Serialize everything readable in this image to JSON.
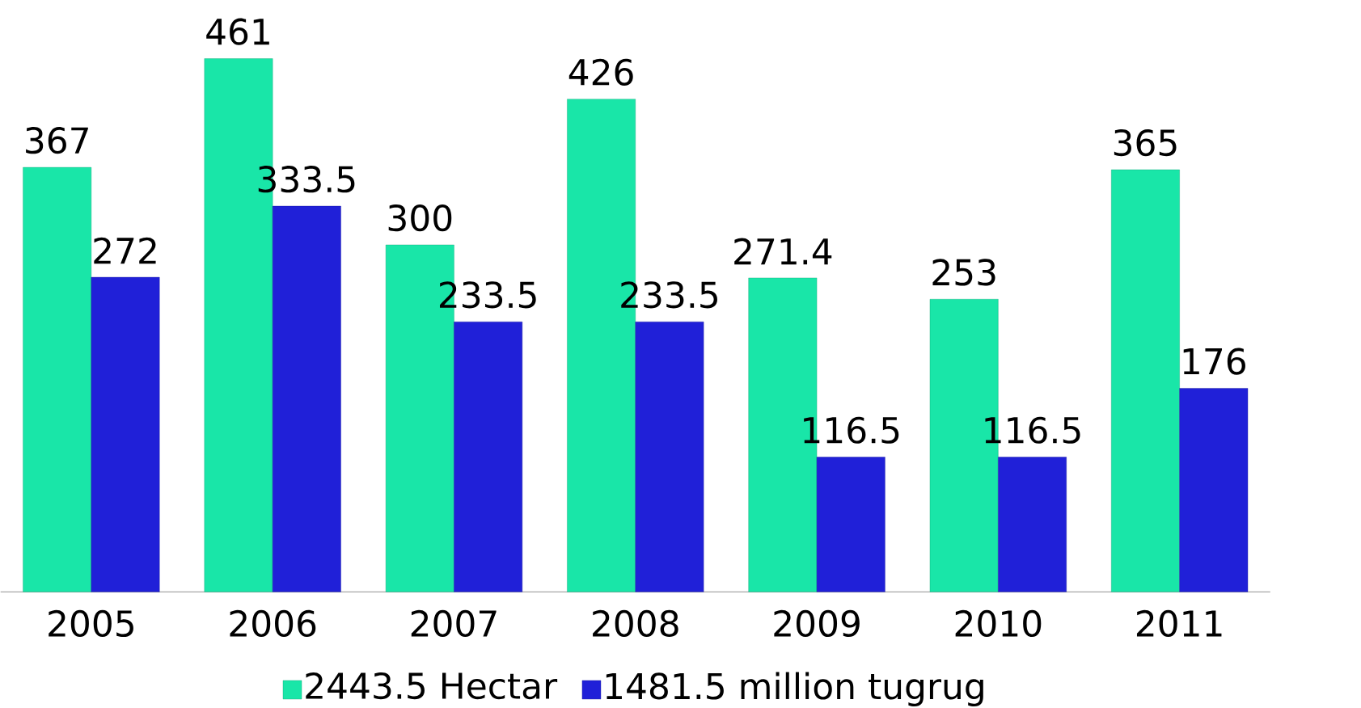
{
  "chart_data": {
    "type": "bar",
    "categories": [
      "2005",
      "2006",
      "2007",
      "2008",
      "2009",
      "2010",
      "2011"
    ],
    "series": [
      {
        "name": "2443.5 Hectar",
        "color": "#19e6a8",
        "values": [
          367,
          461,
          300,
          426,
          271.4,
          253,
          365
        ]
      },
      {
        "name": "1481.5 million tugrug",
        "color": "#2020d8",
        "values": [
          272,
          333.5,
          233.5,
          233.5,
          116.5,
          116.5,
          176
        ]
      }
    ],
    "data_labels": true,
    "legend": "bottom",
    "grid": false
  }
}
